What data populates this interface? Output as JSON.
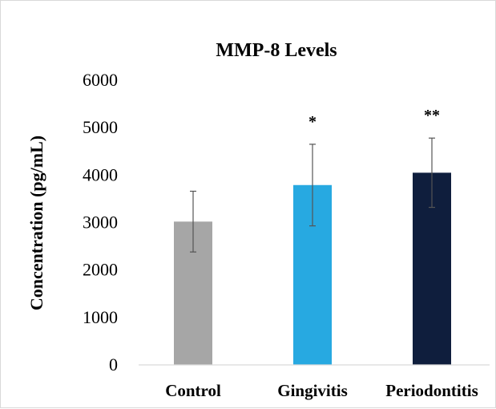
{
  "chart_data": {
    "type": "bar",
    "title": "MMP-8 Levels",
    "xlabel": "",
    "ylabel": "Concentration (pg/mL)",
    "ylim": [
      0,
      6000
    ],
    "yticks": [
      "0",
      "1000",
      "2000",
      "3000",
      "4000",
      "5000",
      "6000"
    ],
    "categories": [
      "Control",
      "Gingivitis",
      "Periodontitis"
    ],
    "values": [
      3020,
      3790,
      4050
    ],
    "errors": [
      640,
      860,
      730
    ],
    "significance": [
      "",
      "*",
      "**"
    ],
    "colors": [
      "#a6a6a6",
      "#27a9e1",
      "#0f1e3d"
    ],
    "grid": false,
    "legend": "none"
  }
}
